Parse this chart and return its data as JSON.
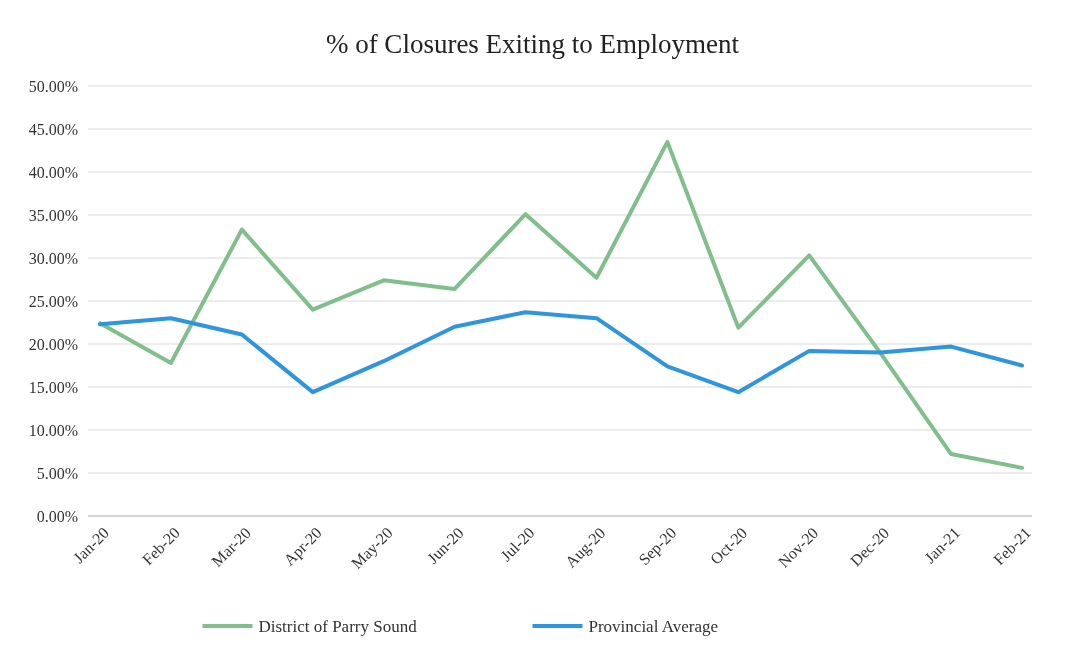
{
  "chart_data": {
    "type": "line",
    "title": "% of Closures Exiting to Employment",
    "categories": [
      "Jan-20",
      "Feb-20",
      "Mar-20",
      "Apr-20",
      "May-20",
      "Jun-20",
      "Jul-20",
      "Aug-20",
      "Sep-20",
      "Oct-20",
      "Nov-20",
      "Dec-20",
      "Jan-21",
      "Feb-21"
    ],
    "series": [
      {
        "name": "District of Parry Sound",
        "color": "#80bf8c",
        "values": [
          22.4,
          17.8,
          33.3,
          24,
          27.4,
          26.4,
          35.1,
          27.7,
          43.5,
          21.9,
          30.3,
          19,
          7.2,
          5.6
        ]
      },
      {
        "name": "Provincial Average",
        "color": "#2f95dc",
        "values": [
          22.3,
          23,
          21.1,
          14.4,
          18,
          22,
          23.7,
          23,
          17.4,
          14.4,
          19.2,
          19,
          19.7,
          17.5
        ]
      }
    ],
    "ylim": [
      0,
      50
    ],
    "yticks": [
      {
        "value": 0,
        "label": "0.00%"
      },
      {
        "value": 5,
        "label": "5.00%"
      },
      {
        "value": 10,
        "label": "10.00%"
      },
      {
        "value": 15,
        "label": "15.00%"
      },
      {
        "value": 20,
        "label": "20.00%"
      },
      {
        "value": 25,
        "label": "25.00%"
      },
      {
        "value": 30,
        "label": "30.00%"
      },
      {
        "value": 35,
        "label": "35.00%"
      },
      {
        "value": 40,
        "label": "40.00%"
      },
      {
        "value": 45,
        "label": "45.00%"
      },
      {
        "value": 50,
        "label": "50.00%"
      }
    ],
    "grid": "y",
    "legend": "bottom",
    "marker": "none",
    "line_style": "solid"
  }
}
